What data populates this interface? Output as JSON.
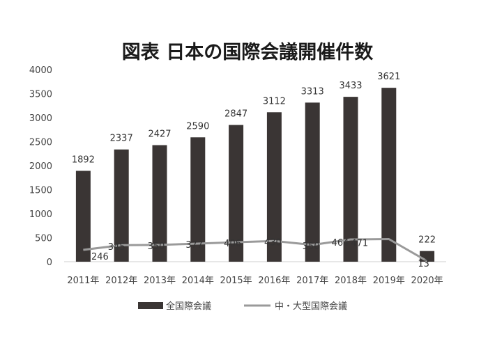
{
  "chart_data": {
    "type": "bar",
    "title": "図表 日本の国際会議開催件数",
    "categories": [
      "2011年",
      "2012年",
      "2013年",
      "2014年",
      "2015年",
      "2016年",
      "2017年",
      "2018年",
      "2019年",
      "2020年"
    ],
    "ylim": [
      0,
      4000
    ],
    "yticks": [
      "0",
      "500",
      "1000",
      "1500",
      "2000",
      "2500",
      "3000",
      "3500",
      "4000"
    ],
    "grid": false,
    "legend_position": "bottom",
    "series": [
      {
        "name": "全国際会議",
        "kind": "bar",
        "color": "#3a3534",
        "values": [
          1892,
          2337,
          2427,
          2590,
          2847,
          3112,
          3313,
          3433,
          3621,
          222
        ],
        "labels": [
          "1892",
          "2337",
          "2427",
          "2590",
          "2847",
          "3112",
          "3313",
          "3433",
          "3621",
          "222"
        ]
      },
      {
        "name": "中・大型国際会議",
        "kind": "line",
        "color": "#9a9a9a",
        "values": [
          246,
          345,
          350,
          377,
          406,
          430,
          350,
          464,
          471,
          13
        ],
        "labels": [
          "246",
          "345",
          "350",
          "377",
          "406",
          "430",
          "350",
          "464",
          "471",
          "13"
        ]
      }
    ]
  }
}
